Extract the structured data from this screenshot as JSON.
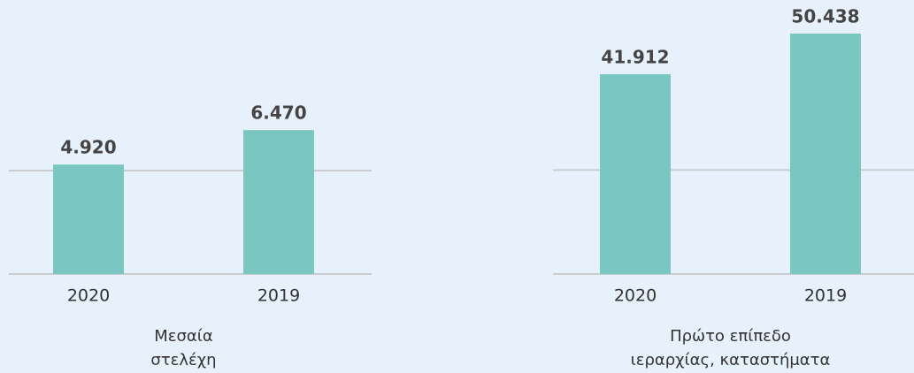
{
  "chart_data": [
    {
      "type": "bar",
      "categories": [
        "2020",
        "2019"
      ],
      "values": [
        4920,
        6470
      ],
      "value_labels": [
        "4.920",
        "6.470"
      ],
      "color": "#7ac6c0",
      "ylim": [
        0,
        12000
      ],
      "yticks": [
        0,
        4650
      ],
      "grid": true,
      "xlabel": [
        "Μεσαία",
        "στελέχη"
      ]
    },
    {
      "type": "bar",
      "categories": [
        "2020",
        "2019"
      ],
      "values": [
        41912,
        50438
      ],
      "value_labels": [
        "41.912",
        "50.438"
      ],
      "color": "#7ac6c0",
      "ylim": [
        0,
        56000
      ],
      "yticks": [
        0,
        21800
      ],
      "grid": true,
      "xlabel": [
        "Πρώτο επίπεδο",
        "ιεραρχίας, καταστήματα"
      ]
    }
  ]
}
